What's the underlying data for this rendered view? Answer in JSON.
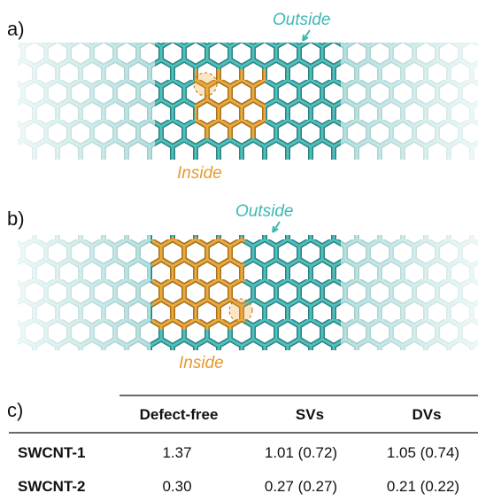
{
  "panels": [
    {
      "label": "a)",
      "outside": "Outside",
      "inside": "Inside"
    },
    {
      "label": "b)",
      "outside": "Outside",
      "inside": "Inside"
    }
  ],
  "table": {
    "label": "c)",
    "header": [
      "Defect-free",
      "SVs",
      "DVs"
    ],
    "rows": [
      [
        "SWCNT-1",
        "1.37",
        "1.01 (0.72)",
        "1.05 (0.74)"
      ],
      [
        "SWCNT-2",
        "0.30",
        "0.27 (0.27)",
        "0.21 (0.22)"
      ]
    ]
  }
}
